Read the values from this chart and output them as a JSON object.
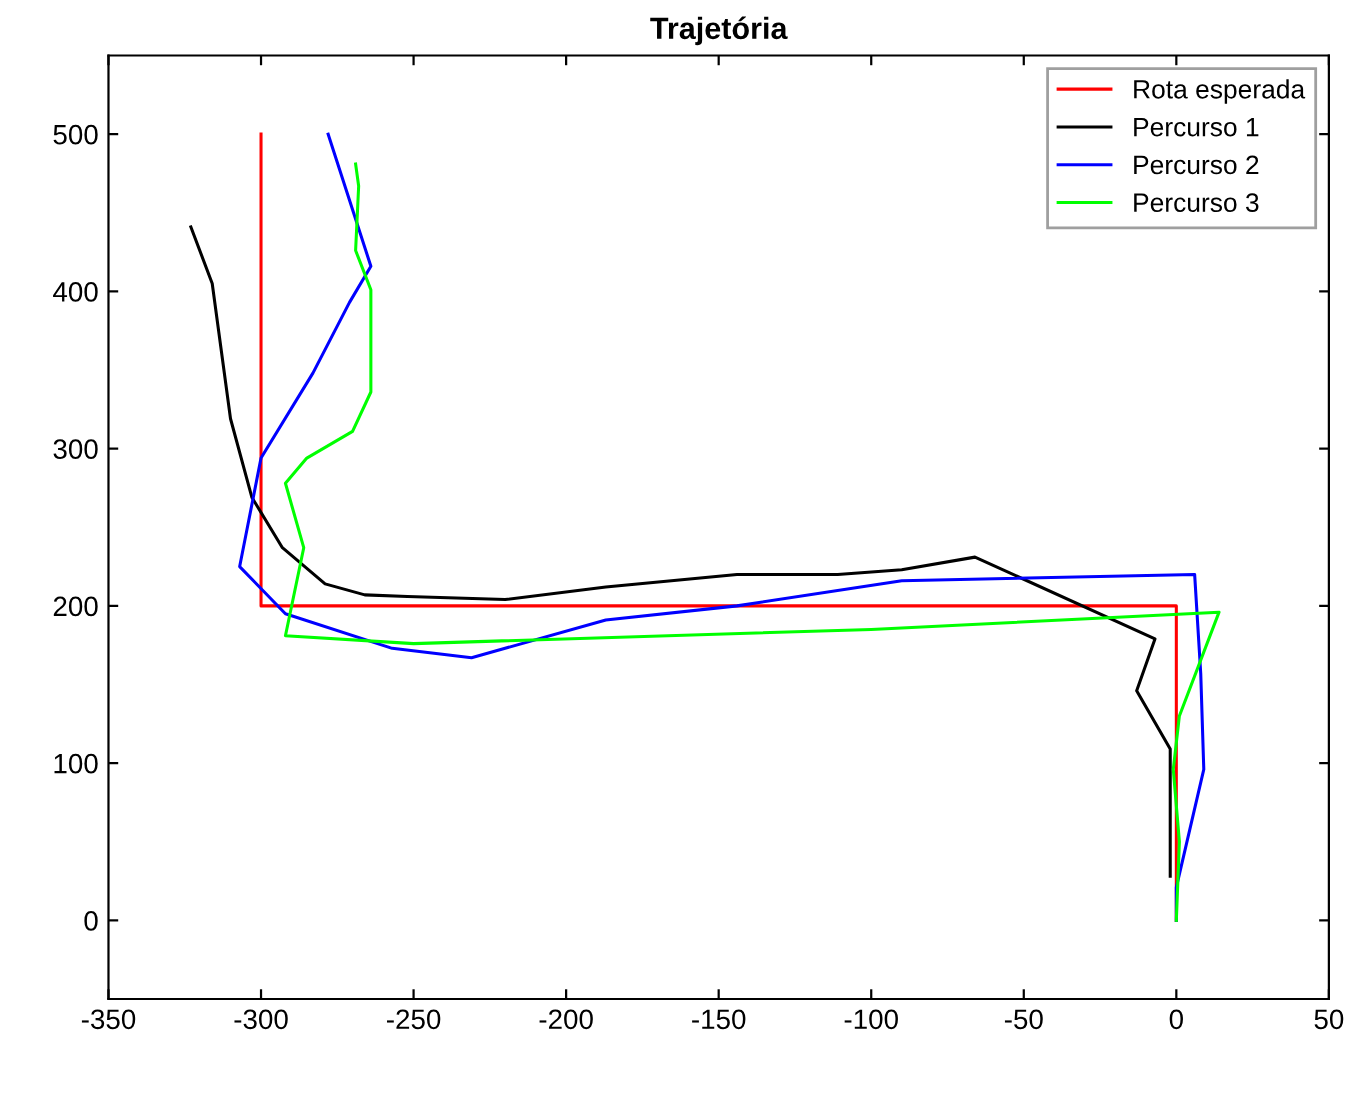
{
  "chart_data": {
    "type": "line",
    "title": "Trajetória",
    "xlim": [
      -350,
      50
    ],
    "ylim": [
      -50,
      550
    ],
    "xticks": [
      -350,
      -300,
      -250,
      -200,
      -150,
      -100,
      -50,
      0,
      50
    ],
    "yticks": [
      0,
      100,
      200,
      300,
      400,
      500
    ],
    "grid": false,
    "legend": "top right",
    "series": [
      {
        "name": "Rota esperada",
        "color": "#ff0000",
        "x": [
          0,
          0,
          -300,
          -300
        ],
        "values": [
          0,
          200,
          200,
          500
        ]
      },
      {
        "name": "Percurso 1",
        "color": "#000000",
        "x": [
          -2,
          -2,
          -13,
          -7,
          -66,
          -90,
          -111,
          -144,
          -187,
          -220,
          -252,
          -266,
          -279,
          -293,
          -303,
          -310,
          -316,
          -323
        ],
        "values": [
          28,
          109,
          146,
          179,
          231,
          223,
          220,
          220,
          212,
          204,
          206,
          207,
          214,
          237,
          269,
          319,
          405,
          441
        ]
      },
      {
        "name": "Percurso 2",
        "color": "#0000ff",
        "x": [
          0,
          0,
          9,
          8,
          6,
          -90,
          -144,
          -187,
          -231,
          -257,
          -292,
          -307,
          -300,
          -283,
          -271,
          -264,
          -278
        ],
        "values": [
          0,
          21,
          96,
          157,
          220,
          216,
          200,
          191,
          167,
          173,
          195,
          225,
          294,
          348,
          393,
          416,
          500
        ]
      },
      {
        "name": "Percurso 3",
        "color": "#00ff00",
        "x": [
          0,
          1,
          -1,
          1,
          14,
          -100,
          -250,
          -292,
          -286,
          -292,
          -285,
          -270,
          -264,
          -264,
          -269,
          -268,
          -269
        ],
        "values": [
          0,
          50,
          96,
          130,
          196,
          185,
          176,
          181,
          237,
          278,
          294,
          311,
          336,
          401,
          426,
          467,
          481
        ]
      }
    ]
  }
}
